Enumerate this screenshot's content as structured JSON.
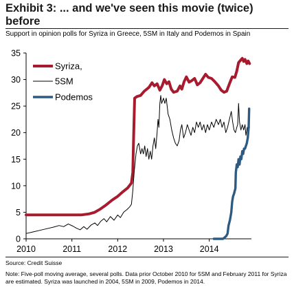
{
  "header": {
    "title": "Exhibit 3: ... and we've seen this movie (twice) before",
    "subtitle": "Support in opinion polls for Syriza in Greece, 5SM in Italy and Podemos in Spain"
  },
  "footer": {
    "source": "Source: Credit Suisse",
    "note": "Note: Five-poll moving average, several polls. Data prior October 2010 for 5SM and  February 2011 for Syriza are estimated. Syriza was launched in 2004, 5SM in 2009, Podemos in 2014."
  },
  "chart_data": {
    "type": "line",
    "title": "",
    "xlabel": "",
    "ylabel": "",
    "xlim": [
      2010,
      2014.92
    ],
    "ylim": [
      0,
      35
    ],
    "x_ticks": [
      2010,
      2011,
      2012,
      2013,
      2014
    ],
    "y_ticks": [
      0,
      5,
      10,
      15,
      20,
      25,
      30,
      35
    ],
    "grid": false,
    "legend_position": "top-left",
    "series": [
      {
        "name": "Syriza,",
        "color": "#a61c2e",
        "points": [
          [
            2010.0,
            4.5
          ],
          [
            2010.5,
            4.5
          ],
          [
            2011.0,
            4.5
          ],
          [
            2011.2,
            4.5
          ],
          [
            2011.38,
            4.7
          ],
          [
            2011.5,
            5.0
          ],
          [
            2011.62,
            5.6
          ],
          [
            2011.75,
            6.4
          ],
          [
            2011.88,
            7.3
          ],
          [
            2012.0,
            8.0
          ],
          [
            2012.12,
            8.9
          ],
          [
            2012.22,
            9.6
          ],
          [
            2012.3,
            10.5
          ],
          [
            2012.33,
            12.5
          ],
          [
            2012.35,
            20.0
          ],
          [
            2012.37,
            26.5
          ],
          [
            2012.42,
            26.8
          ],
          [
            2012.5,
            27.0
          ],
          [
            2012.58,
            27.8
          ],
          [
            2012.68,
            28.5
          ],
          [
            2012.75,
            29.4
          ],
          [
            2012.8,
            28.8
          ],
          [
            2012.86,
            29.2
          ],
          [
            2012.92,
            28.0
          ],
          [
            2012.97,
            28.8
          ],
          [
            2013.02,
            30.0
          ],
          [
            2013.07,
            29.2
          ],
          [
            2013.12,
            29.6
          ],
          [
            2013.17,
            28.2
          ],
          [
            2013.22,
            27.6
          ],
          [
            2013.3,
            27.8
          ],
          [
            2013.36,
            28.8
          ],
          [
            2013.4,
            28.2
          ],
          [
            2013.45,
            29.6
          ],
          [
            2013.5,
            30.5
          ],
          [
            2013.56,
            29.5
          ],
          [
            2013.62,
            29.8
          ],
          [
            2013.68,
            30.2
          ],
          [
            2013.74,
            29.0
          ],
          [
            2013.8,
            29.4
          ],
          [
            2013.86,
            30.2
          ],
          [
            2013.92,
            31.0
          ],
          [
            2013.98,
            30.4
          ],
          [
            2014.05,
            30.2
          ],
          [
            2014.12,
            29.6
          ],
          [
            2014.2,
            28.8
          ],
          [
            2014.26,
            28.0
          ],
          [
            2014.32,
            27.6
          ],
          [
            2014.38,
            27.8
          ],
          [
            2014.44,
            29.2
          ],
          [
            2014.5,
            30.5
          ],
          [
            2014.56,
            30.4
          ],
          [
            2014.6,
            31.6
          ],
          [
            2014.64,
            33.2
          ],
          [
            2014.68,
            33.6
          ],
          [
            2014.72,
            34.0
          ],
          [
            2014.75,
            33.4
          ],
          [
            2014.78,
            33.8
          ],
          [
            2014.82,
            33.0
          ],
          [
            2014.85,
            33.5
          ],
          [
            2014.88,
            33.0
          ]
        ]
      },
      {
        "name": "5SM",
        "color": "#000000",
        "points": [
          [
            2010.0,
            1.0
          ],
          [
            2010.15,
            1.3
          ],
          [
            2010.3,
            1.6
          ],
          [
            2010.45,
            1.9
          ],
          [
            2010.6,
            2.2
          ],
          [
            2010.72,
            2.5
          ],
          [
            2010.82,
            2.3
          ],
          [
            2010.92,
            2.8
          ],
          [
            2011.02,
            2.4
          ],
          [
            2011.1,
            2.0
          ],
          [
            2011.18,
            1.7
          ],
          [
            2011.26,
            2.3
          ],
          [
            2011.33,
            1.8
          ],
          [
            2011.42,
            2.6
          ],
          [
            2011.5,
            3.0
          ],
          [
            2011.56,
            2.5
          ],
          [
            2011.63,
            3.3
          ],
          [
            2011.7,
            3.8
          ],
          [
            2011.76,
            3.2
          ],
          [
            2011.84,
            4.2
          ],
          [
            2011.92,
            3.5
          ],
          [
            2012.0,
            4.5
          ],
          [
            2012.06,
            4.0
          ],
          [
            2012.13,
            5.0
          ],
          [
            2012.2,
            5.5
          ],
          [
            2012.26,
            6.0
          ],
          [
            2012.3,
            6.5
          ],
          [
            2012.33,
            9.0
          ],
          [
            2012.36,
            12.5
          ],
          [
            2012.4,
            16.0
          ],
          [
            2012.43,
            17.5
          ],
          [
            2012.46,
            18.0
          ],
          [
            2012.5,
            16.0
          ],
          [
            2012.53,
            17.0
          ],
          [
            2012.56,
            16.0
          ],
          [
            2012.59,
            17.5
          ],
          [
            2012.62,
            15.5
          ],
          [
            2012.65,
            17.0
          ],
          [
            2012.68,
            15.0
          ],
          [
            2012.71,
            16.5
          ],
          [
            2012.74,
            15.0
          ],
          [
            2012.77,
            17.5
          ],
          [
            2012.8,
            19.0
          ],
          [
            2012.83,
            17.0
          ],
          [
            2012.86,
            20.0
          ],
          [
            2012.88,
            22.5
          ],
          [
            2012.9,
            21.0
          ],
          [
            2012.92,
            25.5
          ],
          [
            2012.94,
            27.0
          ],
          [
            2012.96,
            25.5
          ],
          [
            2012.98,
            26.0
          ],
          [
            2013.0,
            26.5
          ],
          [
            2013.03,
            25.5
          ],
          [
            2013.06,
            26.5
          ],
          [
            2013.1,
            23.5
          ],
          [
            2013.14,
            22.5
          ],
          [
            2013.18,
            20.5
          ],
          [
            2013.22,
            19.0
          ],
          [
            2013.26,
            18.0
          ],
          [
            2013.3,
            17.5
          ],
          [
            2013.34,
            18.5
          ],
          [
            2013.37,
            20.5
          ],
          [
            2013.4,
            21.5
          ],
          [
            2013.44,
            19.0
          ],
          [
            2013.48,
            20.0
          ],
          [
            2013.52,
            21.5
          ],
          [
            2013.56,
            20.5
          ],
          [
            2013.6,
            19.5
          ],
          [
            2013.64,
            21.0
          ],
          [
            2013.68,
            20.0
          ],
          [
            2013.72,
            22.0
          ],
          [
            2013.76,
            21.0
          ],
          [
            2013.8,
            22.0
          ],
          [
            2013.84,
            20.5
          ],
          [
            2013.88,
            21.5
          ],
          [
            2013.92,
            20.0
          ],
          [
            2013.96,
            21.5
          ],
          [
            2014.0,
            20.5
          ],
          [
            2014.05,
            22.0
          ],
          [
            2014.1,
            21.0
          ],
          [
            2014.15,
            22.5
          ],
          [
            2014.2,
            21.5
          ],
          [
            2014.24,
            22.5
          ],
          [
            2014.28,
            21.0
          ],
          [
            2014.32,
            22.0
          ],
          [
            2014.36,
            20.0
          ],
          [
            2014.4,
            21.0
          ],
          [
            2014.44,
            22.5
          ],
          [
            2014.48,
            24.0
          ],
          [
            2014.51,
            22.0
          ],
          [
            2014.54,
            20.5
          ],
          [
            2014.57,
            20.0
          ],
          [
            2014.6,
            21.0
          ],
          [
            2014.62,
            21.5
          ],
          [
            2014.64,
            25.5
          ],
          [
            2014.66,
            22.0
          ],
          [
            2014.69,
            20.5
          ],
          [
            2014.72,
            21.5
          ],
          [
            2014.75,
            20.5
          ],
          [
            2014.78,
            21.5
          ],
          [
            2014.8,
            19.5
          ],
          [
            2014.83,
            21.0
          ],
          [
            2014.86,
            20.5
          ],
          [
            2014.88,
            21.0
          ]
        ]
      },
      {
        "name": "Podemos",
        "color": "#2c5a80",
        "points": [
          [
            2014.1,
            0.0
          ],
          [
            2014.3,
            0.0
          ],
          [
            2014.37,
            0.5
          ],
          [
            2014.4,
            1.0
          ],
          [
            2014.42,
            2.5
          ],
          [
            2014.45,
            3.5
          ],
          [
            2014.48,
            5.0
          ],
          [
            2014.5,
            7.0
          ],
          [
            2014.52,
            8.0
          ],
          [
            2014.54,
            8.5
          ],
          [
            2014.57,
            9.5
          ],
          [
            2014.58,
            12.5
          ],
          [
            2014.6,
            14.0
          ],
          [
            2014.62,
            13.5
          ],
          [
            2014.64,
            15.0
          ],
          [
            2014.66,
            14.0
          ],
          [
            2014.68,
            15.5
          ],
          [
            2014.7,
            15.0
          ],
          [
            2014.72,
            16.5
          ],
          [
            2014.74,
            16.0
          ],
          [
            2014.76,
            17.0
          ],
          [
            2014.78,
            17.0
          ],
          [
            2014.8,
            17.5
          ],
          [
            2014.82,
            18.0
          ],
          [
            2014.84,
            19.0
          ],
          [
            2014.86,
            21.0
          ],
          [
            2014.87,
            24.5
          ]
        ]
      }
    ]
  }
}
